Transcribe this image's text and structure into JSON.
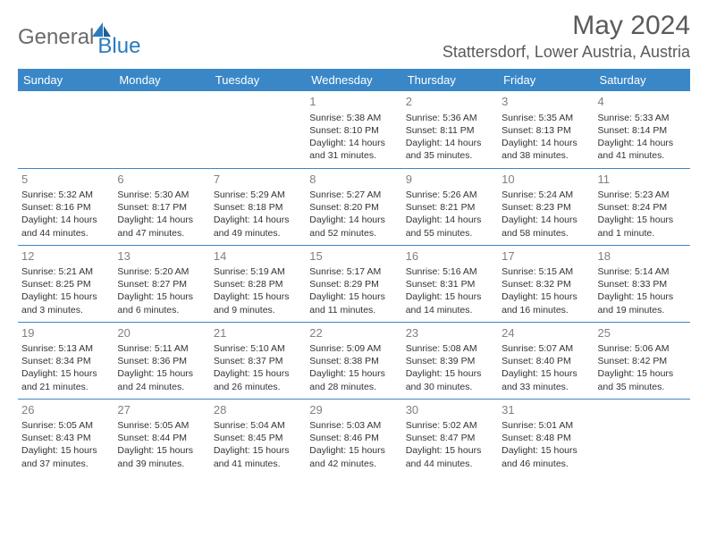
{
  "brand": {
    "general": "General",
    "blue": "Blue"
  },
  "header": {
    "title": "May 2024",
    "location": "Stattersdorf, Lower Austria, Austria"
  },
  "columns": [
    "Sunday",
    "Monday",
    "Tuesday",
    "Wednesday",
    "Thursday",
    "Friday",
    "Saturday"
  ],
  "colors": {
    "header_bg": "#3a87c7",
    "header_text": "#ffffff",
    "border": "#3a87c7",
    "daynum": "#808080",
    "text": "#333333",
    "title": "#5a5a5a",
    "logo_general": "#6a6a6a",
    "logo_blue": "#2a7bbf"
  },
  "weeks": [
    [
      null,
      null,
      null,
      {
        "day": "1",
        "sunrise": "5:38 AM",
        "sunset": "8:10 PM",
        "daylight": "14 hours and 31 minutes."
      },
      {
        "day": "2",
        "sunrise": "5:36 AM",
        "sunset": "8:11 PM",
        "daylight": "14 hours and 35 minutes."
      },
      {
        "day": "3",
        "sunrise": "5:35 AM",
        "sunset": "8:13 PM",
        "daylight": "14 hours and 38 minutes."
      },
      {
        "day": "4",
        "sunrise": "5:33 AM",
        "sunset": "8:14 PM",
        "daylight": "14 hours and 41 minutes."
      }
    ],
    [
      {
        "day": "5",
        "sunrise": "5:32 AM",
        "sunset": "8:16 PM",
        "daylight": "14 hours and 44 minutes."
      },
      {
        "day": "6",
        "sunrise": "5:30 AM",
        "sunset": "8:17 PM",
        "daylight": "14 hours and 47 minutes."
      },
      {
        "day": "7",
        "sunrise": "5:29 AM",
        "sunset": "8:18 PM",
        "daylight": "14 hours and 49 minutes."
      },
      {
        "day": "8",
        "sunrise": "5:27 AM",
        "sunset": "8:20 PM",
        "daylight": "14 hours and 52 minutes."
      },
      {
        "day": "9",
        "sunrise": "5:26 AM",
        "sunset": "8:21 PM",
        "daylight": "14 hours and 55 minutes."
      },
      {
        "day": "10",
        "sunrise": "5:24 AM",
        "sunset": "8:23 PM",
        "daylight": "14 hours and 58 minutes."
      },
      {
        "day": "11",
        "sunrise": "5:23 AM",
        "sunset": "8:24 PM",
        "daylight": "15 hours and 1 minute."
      }
    ],
    [
      {
        "day": "12",
        "sunrise": "5:21 AM",
        "sunset": "8:25 PM",
        "daylight": "15 hours and 3 minutes."
      },
      {
        "day": "13",
        "sunrise": "5:20 AM",
        "sunset": "8:27 PM",
        "daylight": "15 hours and 6 minutes."
      },
      {
        "day": "14",
        "sunrise": "5:19 AM",
        "sunset": "8:28 PM",
        "daylight": "15 hours and 9 minutes."
      },
      {
        "day": "15",
        "sunrise": "5:17 AM",
        "sunset": "8:29 PM",
        "daylight": "15 hours and 11 minutes."
      },
      {
        "day": "16",
        "sunrise": "5:16 AM",
        "sunset": "8:31 PM",
        "daylight": "15 hours and 14 minutes."
      },
      {
        "day": "17",
        "sunrise": "5:15 AM",
        "sunset": "8:32 PM",
        "daylight": "15 hours and 16 minutes."
      },
      {
        "day": "18",
        "sunrise": "5:14 AM",
        "sunset": "8:33 PM",
        "daylight": "15 hours and 19 minutes."
      }
    ],
    [
      {
        "day": "19",
        "sunrise": "5:13 AM",
        "sunset": "8:34 PM",
        "daylight": "15 hours and 21 minutes."
      },
      {
        "day": "20",
        "sunrise": "5:11 AM",
        "sunset": "8:36 PM",
        "daylight": "15 hours and 24 minutes."
      },
      {
        "day": "21",
        "sunrise": "5:10 AM",
        "sunset": "8:37 PM",
        "daylight": "15 hours and 26 minutes."
      },
      {
        "day": "22",
        "sunrise": "5:09 AM",
        "sunset": "8:38 PM",
        "daylight": "15 hours and 28 minutes."
      },
      {
        "day": "23",
        "sunrise": "5:08 AM",
        "sunset": "8:39 PM",
        "daylight": "15 hours and 30 minutes."
      },
      {
        "day": "24",
        "sunrise": "5:07 AM",
        "sunset": "8:40 PM",
        "daylight": "15 hours and 33 minutes."
      },
      {
        "day": "25",
        "sunrise": "5:06 AM",
        "sunset": "8:42 PM",
        "daylight": "15 hours and 35 minutes."
      }
    ],
    [
      {
        "day": "26",
        "sunrise": "5:05 AM",
        "sunset": "8:43 PM",
        "daylight": "15 hours and 37 minutes."
      },
      {
        "day": "27",
        "sunrise": "5:05 AM",
        "sunset": "8:44 PM",
        "daylight": "15 hours and 39 minutes."
      },
      {
        "day": "28",
        "sunrise": "5:04 AM",
        "sunset": "8:45 PM",
        "daylight": "15 hours and 41 minutes."
      },
      {
        "day": "29",
        "sunrise": "5:03 AM",
        "sunset": "8:46 PM",
        "daylight": "15 hours and 42 minutes."
      },
      {
        "day": "30",
        "sunrise": "5:02 AM",
        "sunset": "8:47 PM",
        "daylight": "15 hours and 44 minutes."
      },
      {
        "day": "31",
        "sunrise": "5:01 AM",
        "sunset": "8:48 PM",
        "daylight": "15 hours and 46 minutes."
      },
      null
    ]
  ],
  "labels": {
    "sunrise": "Sunrise:",
    "sunset": "Sunset:",
    "daylight": "Daylight:"
  }
}
